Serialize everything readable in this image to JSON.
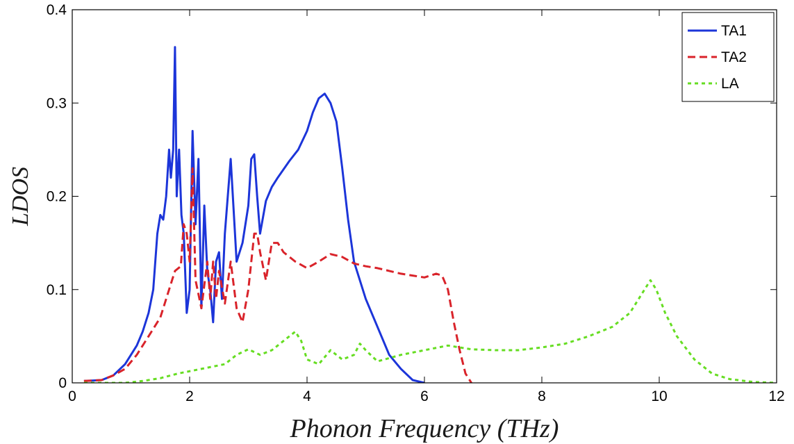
{
  "chart_data": {
    "type": "line",
    "title": "",
    "xlabel": "Phonon Frequency (THz)",
    "ylabel": "LDOS",
    "xlim": [
      0,
      12
    ],
    "ylim": [
      0,
      0.4
    ],
    "x_ticks": [
      0,
      2,
      4,
      6,
      8,
      10,
      12
    ],
    "y_ticks": [
      0,
      0.1,
      0.2,
      0.3,
      0.4
    ],
    "x_tick_labels": [
      "0",
      "2",
      "4",
      "6",
      "8",
      "10",
      "12"
    ],
    "y_tick_labels": [
      "0",
      "0.1",
      "0.2",
      "0.3",
      "0.4"
    ],
    "grid": false,
    "legend_position": "top-right",
    "series": [
      {
        "name": "TA1",
        "color": "#1c35d9",
        "dash": "solid",
        "points": [
          [
            0.2,
            0.002
          ],
          [
            0.5,
            0.003
          ],
          [
            0.7,
            0.008
          ],
          [
            0.9,
            0.02
          ],
          [
            1.0,
            0.03
          ],
          [
            1.1,
            0.04
          ],
          [
            1.2,
            0.055
          ],
          [
            1.3,
            0.075
          ],
          [
            1.38,
            0.1
          ],
          [
            1.45,
            0.16
          ],
          [
            1.5,
            0.18
          ],
          [
            1.55,
            0.175
          ],
          [
            1.6,
            0.2
          ],
          [
            1.65,
            0.25
          ],
          [
            1.68,
            0.22
          ],
          [
            1.72,
            0.25
          ],
          [
            1.75,
            0.36
          ],
          [
            1.78,
            0.2
          ],
          [
            1.82,
            0.25
          ],
          [
            1.86,
            0.18
          ],
          [
            1.9,
            0.16
          ],
          [
            1.95,
            0.075
          ],
          [
            2.0,
            0.1
          ],
          [
            2.05,
            0.27
          ],
          [
            2.1,
            0.17
          ],
          [
            2.15,
            0.24
          ],
          [
            2.2,
            0.08
          ],
          [
            2.25,
            0.19
          ],
          [
            2.3,
            0.12
          ],
          [
            2.35,
            0.1
          ],
          [
            2.4,
            0.065
          ],
          [
            2.45,
            0.13
          ],
          [
            2.5,
            0.14
          ],
          [
            2.55,
            0.09
          ],
          [
            2.6,
            0.16
          ],
          [
            2.7,
            0.24
          ],
          [
            2.8,
            0.13
          ],
          [
            2.9,
            0.15
          ],
          [
            3.0,
            0.19
          ],
          [
            3.05,
            0.24
          ],
          [
            3.1,
            0.245
          ],
          [
            3.15,
            0.2
          ],
          [
            3.2,
            0.16
          ],
          [
            3.3,
            0.195
          ],
          [
            3.4,
            0.21
          ],
          [
            3.5,
            0.22
          ],
          [
            3.7,
            0.238
          ],
          [
            3.85,
            0.25
          ],
          [
            4.0,
            0.27
          ],
          [
            4.1,
            0.29
          ],
          [
            4.2,
            0.305
          ],
          [
            4.3,
            0.31
          ],
          [
            4.4,
            0.3
          ],
          [
            4.5,
            0.28
          ],
          [
            4.6,
            0.23
          ],
          [
            4.7,
            0.175
          ],
          [
            4.8,
            0.13
          ],
          [
            5.0,
            0.09
          ],
          [
            5.2,
            0.06
          ],
          [
            5.4,
            0.03
          ],
          [
            5.6,
            0.015
          ],
          [
            5.8,
            0.003
          ],
          [
            6.0,
            0.0
          ]
        ]
      },
      {
        "name": "TA2",
        "color": "#d9232a",
        "dash": "dashed",
        "points": [
          [
            0.2,
            0.002
          ],
          [
            0.5,
            0.003
          ],
          [
            0.7,
            0.008
          ],
          [
            0.9,
            0.015
          ],
          [
            1.1,
            0.03
          ],
          [
            1.3,
            0.05
          ],
          [
            1.5,
            0.07
          ],
          [
            1.65,
            0.1
          ],
          [
            1.75,
            0.12
          ],
          [
            1.85,
            0.125
          ],
          [
            1.9,
            0.17
          ],
          [
            1.95,
            0.16
          ],
          [
            2.0,
            0.13
          ],
          [
            2.05,
            0.23
          ],
          [
            2.1,
            0.11
          ],
          [
            2.2,
            0.08
          ],
          [
            2.3,
            0.13
          ],
          [
            2.35,
            0.09
          ],
          [
            2.4,
            0.13
          ],
          [
            2.45,
            0.09
          ],
          [
            2.5,
            0.12
          ],
          [
            2.6,
            0.085
          ],
          [
            2.7,
            0.13
          ],
          [
            2.8,
            0.08
          ],
          [
            2.9,
            0.065
          ],
          [
            3.0,
            0.1
          ],
          [
            3.1,
            0.16
          ],
          [
            3.15,
            0.16
          ],
          [
            3.2,
            0.14
          ],
          [
            3.3,
            0.11
          ],
          [
            3.4,
            0.15
          ],
          [
            3.5,
            0.15
          ],
          [
            3.6,
            0.14
          ],
          [
            3.8,
            0.13
          ],
          [
            4.0,
            0.123
          ],
          [
            4.2,
            0.13
          ],
          [
            4.4,
            0.138
          ],
          [
            4.6,
            0.135
          ],
          [
            4.8,
            0.128
          ],
          [
            5.0,
            0.125
          ],
          [
            5.2,
            0.123
          ],
          [
            5.4,
            0.12
          ],
          [
            5.6,
            0.117
          ],
          [
            5.8,
            0.115
          ],
          [
            6.0,
            0.113
          ],
          [
            6.2,
            0.117
          ],
          [
            6.3,
            0.115
          ],
          [
            6.4,
            0.1
          ],
          [
            6.5,
            0.065
          ],
          [
            6.6,
            0.035
          ],
          [
            6.7,
            0.01
          ],
          [
            6.8,
            0.0
          ]
        ]
      },
      {
        "name": "LA",
        "color": "#66dd22",
        "dash": "dotted",
        "points": [
          [
            0.2,
            0.0
          ],
          [
            0.9,
            0.0
          ],
          [
            1.2,
            0.002
          ],
          [
            1.5,
            0.005
          ],
          [
            1.8,
            0.01
          ],
          [
            2.2,
            0.015
          ],
          [
            2.6,
            0.02
          ],
          [
            2.8,
            0.03
          ],
          [
            3.0,
            0.036
          ],
          [
            3.2,
            0.03
          ],
          [
            3.4,
            0.035
          ],
          [
            3.6,
            0.045
          ],
          [
            3.8,
            0.055
          ],
          [
            3.9,
            0.045
          ],
          [
            4.0,
            0.025
          ],
          [
            4.2,
            0.02
          ],
          [
            4.4,
            0.035
          ],
          [
            4.6,
            0.025
          ],
          [
            4.8,
            0.03
          ],
          [
            4.9,
            0.042
          ],
          [
            5.0,
            0.035
          ],
          [
            5.2,
            0.023
          ],
          [
            5.6,
            0.03
          ],
          [
            6.0,
            0.035
          ],
          [
            6.4,
            0.04
          ],
          [
            6.8,
            0.036
          ],
          [
            7.2,
            0.035
          ],
          [
            7.6,
            0.035
          ],
          [
            8.0,
            0.038
          ],
          [
            8.4,
            0.042
          ],
          [
            8.8,
            0.05
          ],
          [
            9.2,
            0.06
          ],
          [
            9.5,
            0.075
          ],
          [
            9.7,
            0.095
          ],
          [
            9.85,
            0.11
          ],
          [
            9.95,
            0.1
          ],
          [
            10.1,
            0.075
          ],
          [
            10.3,
            0.05
          ],
          [
            10.6,
            0.025
          ],
          [
            10.9,
            0.01
          ],
          [
            11.2,
            0.004
          ],
          [
            11.6,
            0.001
          ],
          [
            12.0,
            0.0
          ]
        ]
      }
    ]
  }
}
